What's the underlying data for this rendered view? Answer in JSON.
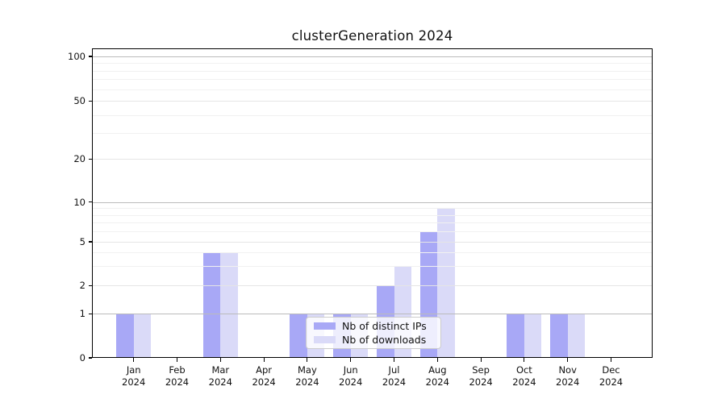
{
  "figure": {
    "background": "#ffffff"
  },
  "chart_data": {
    "type": "bar",
    "title": "clusterGeneration 2024",
    "categories": [
      "Jan 2024",
      "Feb 2024",
      "Mar 2024",
      "Apr 2024",
      "May 2024",
      "Jun 2024",
      "Jul 2024",
      "Aug 2024",
      "Sep 2024",
      "Oct 2024",
      "Nov 2024",
      "Dec 2024"
    ],
    "series": [
      {
        "name": "Nb of distinct IPs",
        "color": "#a8a8f6",
        "values": [
          1,
          0,
          4,
          0,
          1,
          1,
          2,
          6,
          0,
          1,
          1,
          0
        ]
      },
      {
        "name": "Nb of downloads",
        "color": "#dadaf8",
        "values": [
          1,
          0,
          4,
          0,
          1,
          1,
          3,
          9,
          0,
          1,
          1,
          0
        ]
      }
    ],
    "xlabel": "",
    "ylabel": "",
    "yscale": "symlog",
    "yticks": [
      100,
      50,
      20,
      10,
      5,
      2,
      1,
      0
    ],
    "ylim": [
      0,
      130
    ],
    "grid": {
      "decade_lines": [
        1,
        10,
        100
      ],
      "labeled_lines": [
        2,
        5,
        20,
        50
      ],
      "minor_lines": [
        3,
        4,
        6,
        7,
        8,
        9,
        30,
        40,
        60,
        70,
        80,
        90
      ]
    },
    "legend": {
      "position": "lower center",
      "items": [
        "Nb of distinct IPs",
        "Nb of downloads"
      ]
    }
  },
  "colors": {
    "bar_distinct_ips": "#a8a8f6",
    "bar_downloads": "#dadaf8",
    "grid_decade": "#bbbbbb",
    "grid_labeled": "#e5e5e5",
    "grid_minor": "#f1f1f1",
    "axis_frame": "#000000",
    "text": "#111111",
    "legend_border": "#cccccc",
    "legend_background": "#ffffff"
  }
}
